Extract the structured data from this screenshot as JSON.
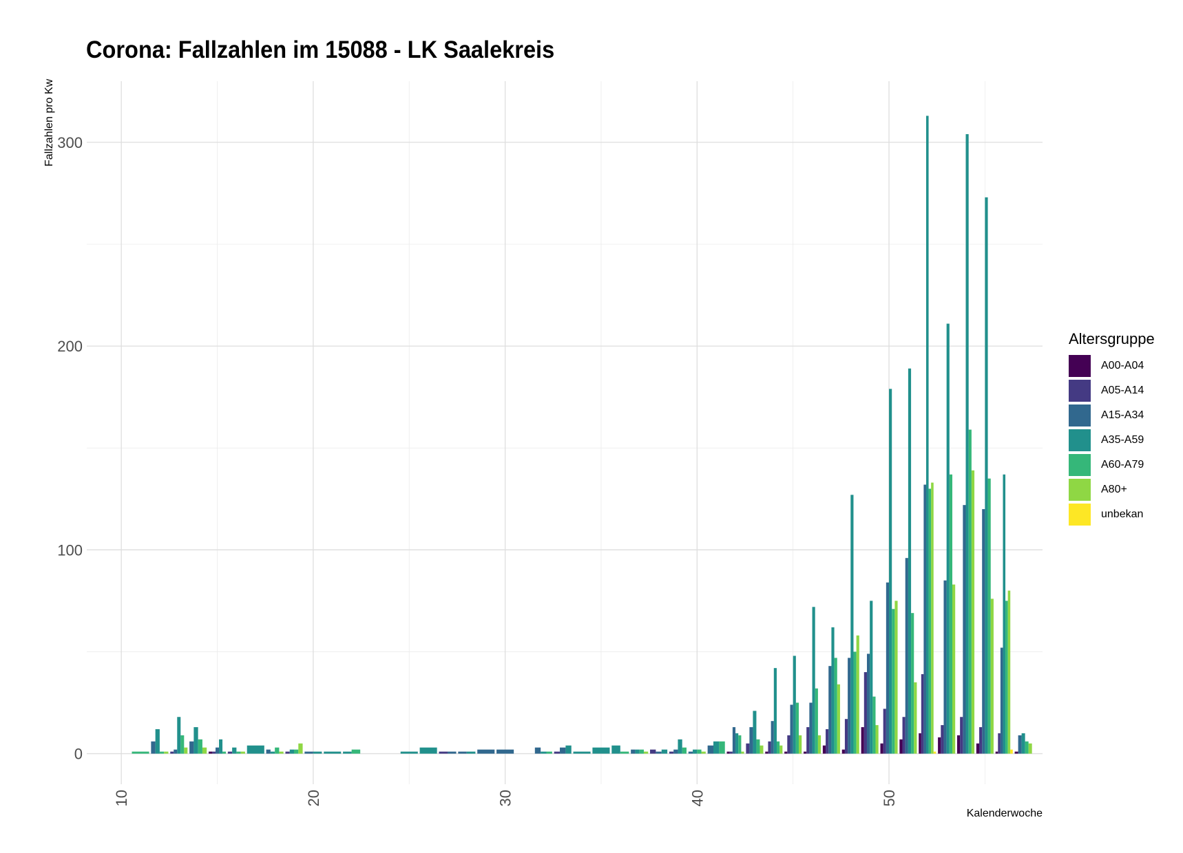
{
  "chart_data": {
    "type": "bar",
    "title": "Corona: Fallzahlen im 15088 - LK Saalekreis",
    "xlabel": "Kalenderwoche",
    "ylabel": "Fallzahlen pro Kw",
    "xlim": [
      8.2,
      58
    ],
    "ylim": [
      -15,
      330
    ],
    "x_ticks": [
      10,
      20,
      30,
      40,
      50
    ],
    "y_ticks": [
      0,
      100,
      200,
      300
    ],
    "grid": true,
    "legend_title": "Altersgruppe",
    "legend_position": "right",
    "groups": [
      "A00-A04",
      "A05-A14",
      "A15-A34",
      "A35-A59",
      "A60-A79",
      "A80+",
      "unbekan"
    ],
    "colors": [
      "#440154",
      "#443A83",
      "#31688E",
      "#21908C",
      "#35B779",
      "#8FD744",
      "#FDE725"
    ],
    "weeks": [
      {
        "kw": 11,
        "A60-A79": 1
      },
      {
        "kw": 12,
        "A15-A34": 6,
        "A35-A59": 12,
        "A60-A79": 1,
        "A80+": 1
      },
      {
        "kw": 13,
        "A05-A14": 1,
        "A15-A34": 2,
        "A35-A59": 18,
        "A60-A79": 9,
        "A80+": 3
      },
      {
        "kw": 14,
        "A15-A34": 6,
        "A35-A59": 13,
        "A60-A79": 7,
        "A80+": 3
      },
      {
        "kw": 15,
        "A00-A04": 1,
        "A05-A14": 1,
        "A15-A34": 3,
        "A35-A59": 7,
        "A60-A79": 1
      },
      {
        "kw": 16,
        "A05-A14": 1,
        "A35-A59": 3,
        "A60-A79": 1,
        "A80+": 1
      },
      {
        "kw": 17,
        "A35-A59": 4
      },
      {
        "kw": 18,
        "A15-A34": 2,
        "A35-A59": 1,
        "A60-A79": 3,
        "A80+": 1
      },
      {
        "kw": 19,
        "A05-A14": 1,
        "A35-A59": 2,
        "A60-A79": 2,
        "A80+": 5
      },
      {
        "kw": 20,
        "A15-A34": 1,
        "A35-A59": 1
      },
      {
        "kw": 21,
        "A35-A59": 1
      },
      {
        "kw": 22,
        "A35-A59": 1,
        "A60-A79": 2
      },
      {
        "kw": 25,
        "A35-A59": 1
      },
      {
        "kw": 26,
        "A35-A59": 3
      },
      {
        "kw": 27,
        "A05-A14": 1,
        "A15-A34": 1
      },
      {
        "kw": 28,
        "A15-A34": 1,
        "A35-A59": 1
      },
      {
        "kw": 29,
        "A15-A34": 2
      },
      {
        "kw": 30,
        "A15-A34": 2
      },
      {
        "kw": 32,
        "A15-A34": 3,
        "A35-A59": 1,
        "A60-A79": 1
      },
      {
        "kw": 33,
        "A05-A14": 1,
        "A15-A34": 3,
        "A35-A59": 4
      },
      {
        "kw": 34,
        "A35-A59": 1
      },
      {
        "kw": 35,
        "A35-A59": 3
      },
      {
        "kw": 36,
        "A35-A59": 4,
        "A60-A79": 1
      },
      {
        "kw": 37,
        "A15-A34": 2,
        "A35-A59": 2,
        "A60-A79": 2,
        "A80+": 1
      },
      {
        "kw": 38,
        "A05-A14": 2,
        "A15-A34": 1,
        "A35-A59": 2
      },
      {
        "kw": 39,
        "A05-A14": 1,
        "A15-A34": 2,
        "A35-A59": 7,
        "A60-A79": 3
      },
      {
        "kw": 40,
        "A15-A34": 1,
        "A35-A59": 2,
        "A60-A79": 2,
        "A80+": 1
      },
      {
        "kw": 41,
        "A15-A34": 4,
        "A35-A59": 6,
        "A60-A79": 6
      },
      {
        "kw": 42,
        "A00-A04": 1,
        "A05-A14": 1,
        "A15-A34": 13,
        "A35-A59": 10,
        "A60-A79": 9,
        "A80+": 1
      },
      {
        "kw": 43,
        "A05-A14": 5,
        "A15-A34": 13,
        "A35-A59": 21,
        "A60-A79": 7,
        "A80+": 4
      },
      {
        "kw": 44,
        "A00-A04": 1,
        "A05-A14": 6,
        "A15-A34": 16,
        "A35-A59": 42,
        "A60-A79": 6,
        "A80+": 4
      },
      {
        "kw": 45,
        "A00-A04": 1,
        "A05-A14": 9,
        "A15-A34": 24,
        "A35-A59": 48,
        "A60-A79": 25,
        "A80+": 9
      },
      {
        "kw": 46,
        "A00-A04": 1,
        "A05-A14": 13,
        "A15-A34": 25,
        "A35-A59": 72,
        "A60-A79": 32,
        "A80+": 9
      },
      {
        "kw": 47,
        "A00-A04": 4,
        "A05-A14": 12,
        "A15-A34": 43,
        "A35-A59": 62,
        "A60-A79": 47,
        "A80+": 34
      },
      {
        "kw": 48,
        "A00-A04": 2,
        "A05-A14": 17,
        "A15-A34": 47,
        "A35-A59": 127,
        "A60-A79": 50,
        "A80+": 58
      },
      {
        "kw": 49,
        "A00-A04": 13,
        "A05-A14": 40,
        "A15-A34": 49,
        "A35-A59": 75,
        "A60-A79": 28,
        "A80+": 14
      },
      {
        "kw": 50,
        "A00-A04": 5,
        "A05-A14": 22,
        "A15-A34": 84,
        "A35-A59": 179,
        "A60-A79": 71,
        "A80+": 75
      },
      {
        "kw": 51,
        "A00-A04": 7,
        "A05-A14": 18,
        "A15-A34": 96,
        "A35-A59": 189,
        "A60-A79": 69,
        "A80+": 35
      },
      {
        "kw": 52,
        "A00-A04": 10,
        "A05-A14": 39,
        "A15-A34": 132,
        "A35-A59": 313,
        "A60-A79": 130,
        "A80+": 133,
        "unbekan": 1
      },
      {
        "kw": 53,
        "A00-A04": 8,
        "A05-A14": 14,
        "A15-A34": 85,
        "A35-A59": 211,
        "A60-A79": 137,
        "A80+": 83
      },
      {
        "kw": 54,
        "A00-A04": 9,
        "A05-A14": 18,
        "A15-A34": 122,
        "A35-A59": 304,
        "A60-A79": 159,
        "A80+": 139
      },
      {
        "kw": 55,
        "A00-A04": 5,
        "A05-A14": 13,
        "A15-A34": 120,
        "A35-A59": 273,
        "A60-A79": 135,
        "A80+": 76
      },
      {
        "kw": 56,
        "A00-A04": 1,
        "A05-A14": 10,
        "A15-A34": 52,
        "A35-A59": 137,
        "A60-A79": 75,
        "A80+": 80,
        "unbekan": 2
      },
      {
        "kw": 57,
        "A00-A04": 1,
        "A15-A34": 9,
        "A35-A59": 10,
        "A60-A79": 6,
        "A80+": 5
      }
    ]
  }
}
